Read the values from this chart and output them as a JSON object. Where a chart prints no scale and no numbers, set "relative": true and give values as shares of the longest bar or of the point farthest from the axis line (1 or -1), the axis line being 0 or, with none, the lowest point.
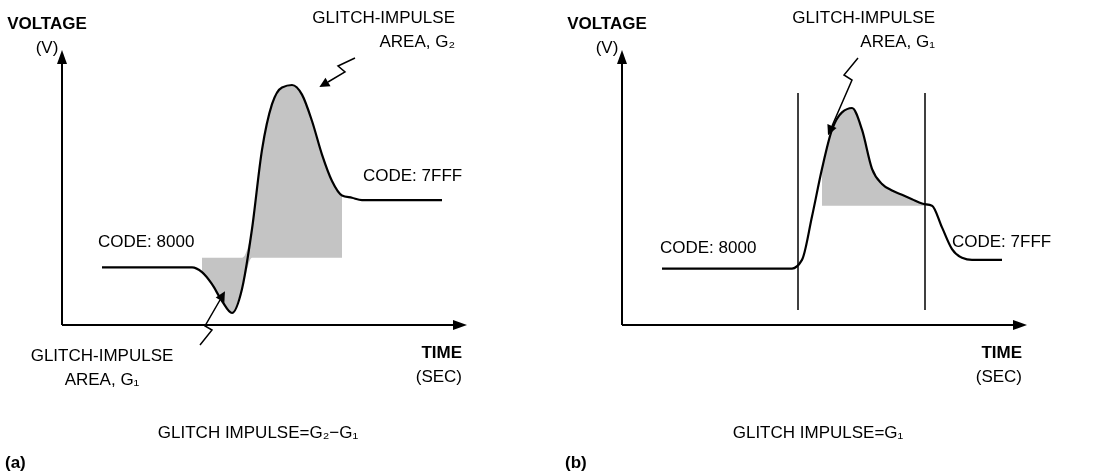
{
  "chart_data": [
    {
      "type": "line",
      "relative": true,
      "xlabel": "TIME\n(SEC)",
      "ylabel": "VOLTAGE\n(V)",
      "categories": [
        null,
        null,
        null,
        null,
        null,
        null,
        null,
        null,
        null,
        null,
        null,
        null,
        null,
        null,
        null,
        null,
        null,
        null,
        null,
        null,
        null,
        null,
        null,
        null,
        null,
        null,
        null,
        null,
        null,
        null,
        null,
        null,
        null,
        null,
        null,
        null,
        null,
        null,
        null
      ],
      "series": [
        {
          "color": "#000000",
          "values": [
            null,
            null,
            null,
            null,
            0.24,
            0.24,
            0.24,
            0.24,
            0.24,
            0.24,
            0.24,
            0.24,
            0.24,
            0.24,
            0.22,
            0.17,
            0.1,
            0.05,
            0.15,
            0.4,
            0.73,
            0.92,
            0.99,
            1,
            0.96,
            0.85,
            0.71,
            0.6,
            0.54,
            0.53,
            0.52,
            0.52,
            0.52,
            0.52,
            0.52,
            0.52,
            0.52,
            0.52,
            0.52
          ],
          "lower": [
            null,
            null,
            null,
            null,
            null,
            null,
            null,
            null,
            null,
            null,
            null,
            null,
            null,
            null,
            0.22,
            0.17,
            0.1,
            0.05,
            0.15,
            0.28,
            0.28,
            0.28,
            0.28,
            0.28,
            0.28,
            0.28,
            0.28,
            0.28,
            0.28,
            null,
            null,
            null,
            null,
            null,
            null,
            null,
            null,
            null,
            null
          ],
          "upper": [
            null,
            null,
            null,
            null,
            null,
            null,
            null,
            null,
            null,
            null,
            null,
            null,
            null,
            null,
            0.28,
            0.28,
            0.28,
            0.28,
            0.28,
            0.4,
            0.73,
            0.92,
            0.99,
            1,
            0.96,
            0.85,
            0.71,
            0.6,
            0.54,
            null,
            null,
            null,
            null,
            null,
            null,
            null,
            null,
            null,
            null
          ]
        }
      ],
      "annotations": [
        "CODE: 8000",
        "CODE: 7FFF",
        "GLITCH-IMPULSE\nAREA, G₂",
        "GLITCH-IMPULSE\nAREA, G₁",
        "GLITCH IMPULSE=G₂−G₁",
        "(a)"
      ]
    },
    {
      "type": "line",
      "relative": true,
      "xlabel": "TIME\n(SEC)",
      "ylabel": "VOLTAGE\n(V)",
      "categories": [
        null,
        null,
        null,
        null,
        null,
        null,
        null,
        null,
        null,
        null,
        null,
        null,
        null,
        null,
        null,
        null,
        null,
        null,
        null,
        null,
        null,
        null,
        null,
        null,
        null,
        null,
        null,
        null,
        null,
        null,
        null,
        null,
        null,
        null,
        null,
        null,
        null,
        null,
        null
      ],
      "series": [
        {
          "color": "#000000",
          "values": [
            null,
            null,
            null,
            null,
            0.26,
            0.26,
            0.26,
            0.26,
            0.26,
            0.26,
            0.26,
            0.26,
            0.26,
            0.26,
            0.26,
            0.26,
            0.26,
            0.26,
            0.3,
            0.5,
            0.72,
            0.9,
            0.98,
            1,
            0.9,
            0.72,
            0.65,
            0.62,
            0.6,
            0.58,
            0.56,
            0.55,
            0.45,
            0.35,
            0.31,
            0.3,
            0.3,
            0.3,
            0.3
          ],
          "lower": [
            null,
            null,
            null,
            null,
            null,
            null,
            null,
            null,
            null,
            null,
            null,
            null,
            null,
            null,
            null,
            null,
            null,
            null,
            null,
            null,
            0.55,
            0.55,
            0.55,
            0.55,
            0.55,
            0.55,
            0.55,
            0.55,
            0.55,
            0.55,
            0.55,
            0.55,
            null,
            null,
            null,
            null,
            null,
            null,
            null
          ],
          "upper": [
            null,
            null,
            null,
            null,
            null,
            null,
            null,
            null,
            null,
            null,
            null,
            null,
            null,
            null,
            null,
            null,
            null,
            null,
            null,
            null,
            0.72,
            0.9,
            0.98,
            1,
            0.9,
            0.72,
            0.65,
            0.62,
            0.6,
            0.58,
            0.56,
            0.55,
            null,
            null,
            null,
            null,
            null,
            null,
            null
          ]
        }
      ],
      "annotations": [
        "CODE: 8000",
        "CODE: 7FFF",
        "GLITCH-IMPULSE\nAREA, G₁",
        "GLITCH IMPULSE=G₁",
        "(b)"
      ]
    }
  ]
}
